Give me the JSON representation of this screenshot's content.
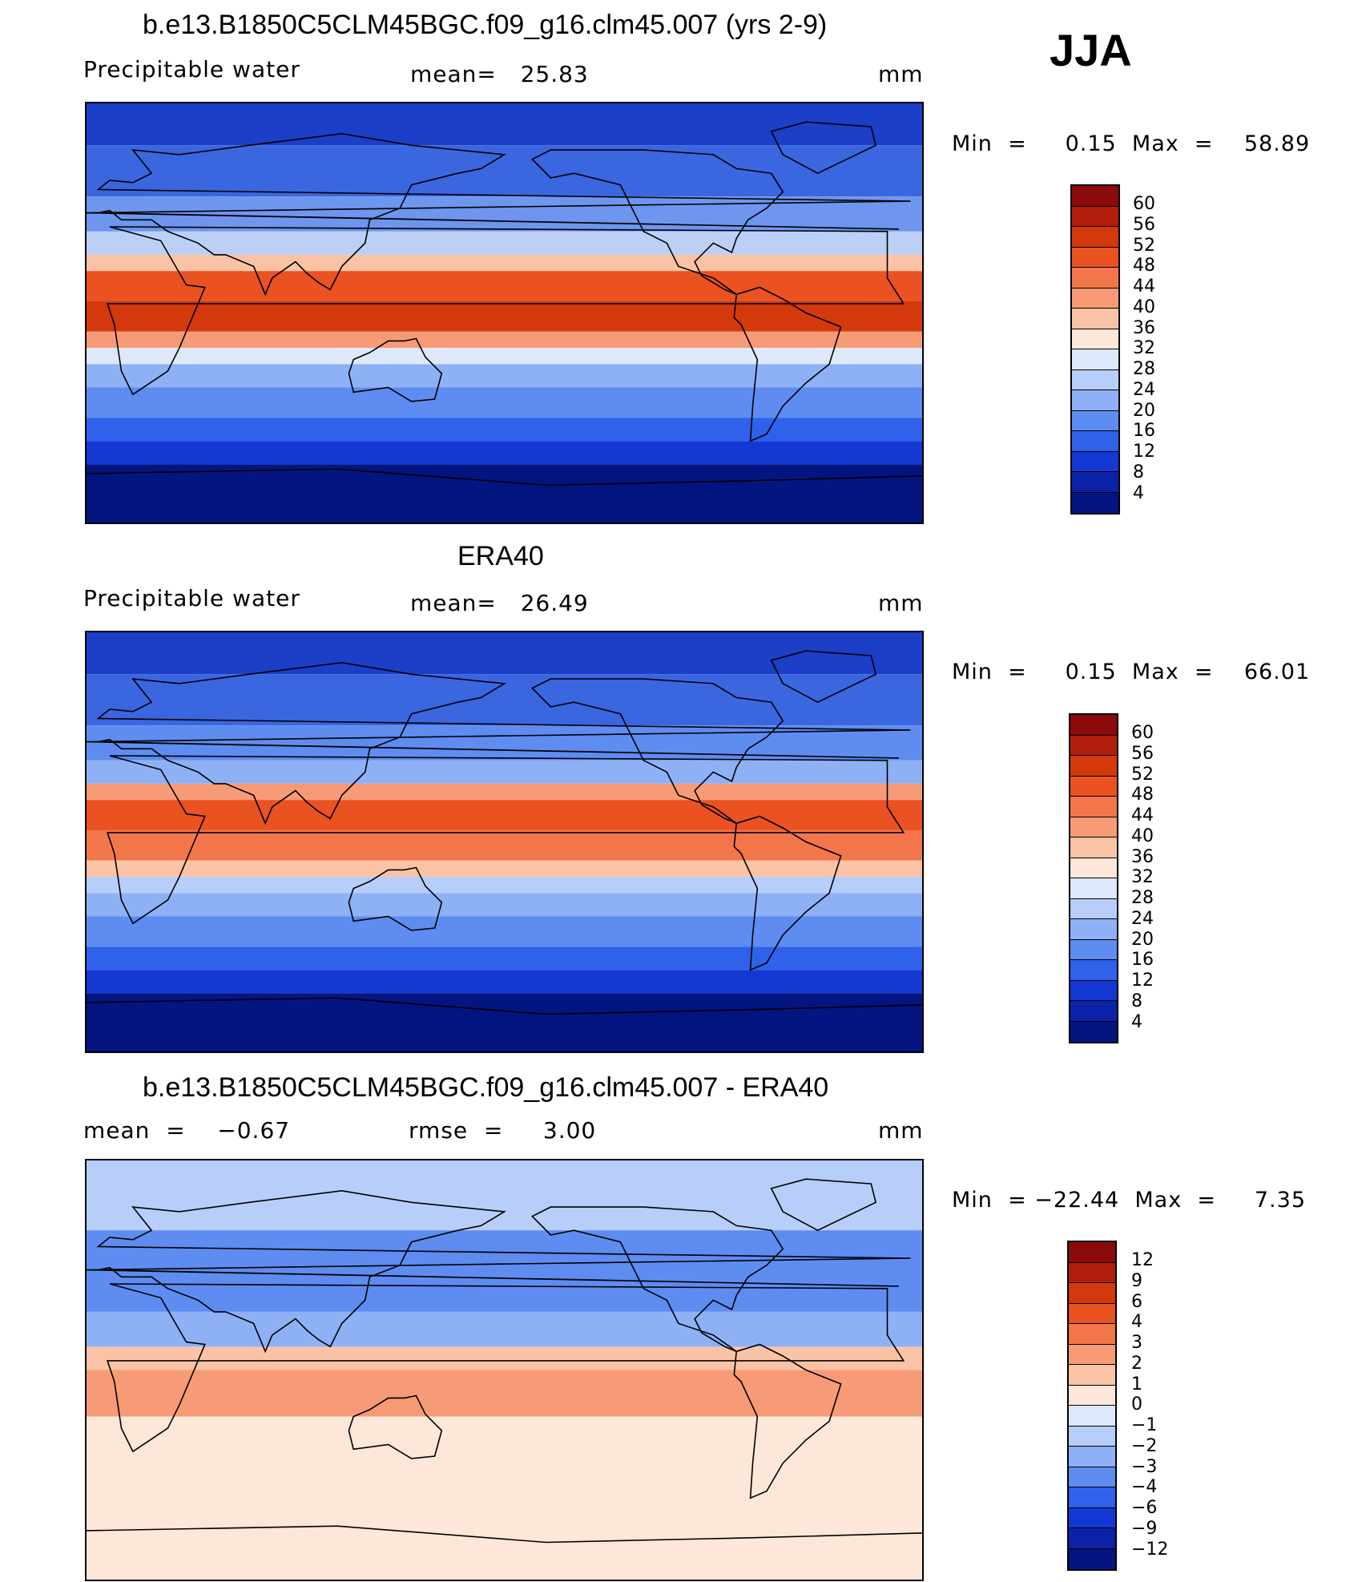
{
  "season": "JJA",
  "panels": [
    {
      "title": "b.e13.B1850C5CLM45BGC.f09_g16.clm45.007 (yrs 2-9)",
      "left_label": "Precipitable water",
      "center_label": "mean=   25.83",
      "right_label": "mm",
      "minmax": "Min  =     0.15  Max  =    58.89",
      "legend_labels": [
        "60",
        "56",
        "52",
        "48",
        "44",
        "40",
        "36",
        "32",
        "28",
        "24",
        "20",
        "16",
        "12",
        "8",
        "4"
      ],
      "legend_colors": [
        "#8b0a0a",
        "#b01e0b",
        "#d4380d",
        "#ea5221",
        "#f2764a",
        "#f79b77",
        "#fbc3a6",
        "#fde7d9",
        "#dde8fb",
        "#b7cefa",
        "#8eb1f6",
        "#5e8cf1",
        "#2f61ea",
        "#1438d4",
        "#0b22a8",
        "#041480"
      ],
      "bands": [
        {
          "lat": [
            90,
            72
          ],
          "color": "#1c3fc8"
        },
        {
          "lat": [
            72,
            50
          ],
          "color": "#3a66e0"
        },
        {
          "lat": [
            50,
            35
          ],
          "color": "#6e96ee"
        },
        {
          "lat": [
            35,
            25
          ],
          "color": "#bcd0f7"
        },
        {
          "lat": [
            25,
            18
          ],
          "color": "#fbc3a6"
        },
        {
          "lat": [
            18,
            5
          ],
          "color": "#ea5221"
        },
        {
          "lat": [
            5,
            -8
          ],
          "color": "#d4380d"
        },
        {
          "lat": [
            -8,
            -15
          ],
          "color": "#f79b77"
        },
        {
          "lat": [
            -15,
            -22
          ],
          "color": "#dde8fb"
        },
        {
          "lat": [
            -22,
            -32
          ],
          "color": "#8eb1f6"
        },
        {
          "lat": [
            -32,
            -45
          ],
          "color": "#5e8cf1"
        },
        {
          "lat": [
            -45,
            -55
          ],
          "color": "#2f61ea"
        },
        {
          "lat": [
            -55,
            -65
          ],
          "color": "#1438d4"
        },
        {
          "lat": [
            -65,
            -90
          ],
          "color": "#041480"
        }
      ]
    },
    {
      "title": "ERA40",
      "left_label": "Precipitable water",
      "center_label": "mean=   26.49",
      "right_label": "mm",
      "minmax": "Min  =     0.15  Max  =    66.01",
      "legend_labels": [
        "60",
        "56",
        "52",
        "48",
        "44",
        "40",
        "36",
        "32",
        "28",
        "24",
        "20",
        "16",
        "12",
        "8",
        "4"
      ],
      "legend_colors": [
        "#8b0a0a",
        "#b01e0b",
        "#d4380d",
        "#ea5221",
        "#f2764a",
        "#f79b77",
        "#fbc3a6",
        "#fde7d9",
        "#dde8fb",
        "#b7cefa",
        "#8eb1f6",
        "#5e8cf1",
        "#2f61ea",
        "#1438d4",
        "#0b22a8",
        "#041480"
      ],
      "bands": [
        {
          "lat": [
            90,
            72
          ],
          "color": "#1c3fc8"
        },
        {
          "lat": [
            72,
            50
          ],
          "color": "#3a66e0"
        },
        {
          "lat": [
            50,
            35
          ],
          "color": "#5e8cf1"
        },
        {
          "lat": [
            35,
            25
          ],
          "color": "#8eb1f6"
        },
        {
          "lat": [
            25,
            18
          ],
          "color": "#f79b77"
        },
        {
          "lat": [
            18,
            5
          ],
          "color": "#ea5221"
        },
        {
          "lat": [
            5,
            -8
          ],
          "color": "#f2764a"
        },
        {
          "lat": [
            -8,
            -15
          ],
          "color": "#fbc3a6"
        },
        {
          "lat": [
            -15,
            -22
          ],
          "color": "#b7cefa"
        },
        {
          "lat": [
            -22,
            -32
          ],
          "color": "#8eb1f6"
        },
        {
          "lat": [
            -32,
            -45
          ],
          "color": "#5e8cf1"
        },
        {
          "lat": [
            -45,
            -55
          ],
          "color": "#2f61ea"
        },
        {
          "lat": [
            -55,
            -65
          ],
          "color": "#1438d4"
        },
        {
          "lat": [
            -65,
            -90
          ],
          "color": "#041480"
        }
      ]
    },
    {
      "title": "b.e13.B1850C5CLM45BGC.f09_g16.clm45.007 - ERA40",
      "left_label": "mean  =    −0.67",
      "center_label": "rmse  =     3.00",
      "right_label": "mm",
      "minmax": "Min  = −22.44  Max  =     7.35",
      "legend_labels": [
        "12",
        "9",
        "6",
        "4",
        "3",
        "2",
        "1",
        "0",
        "−1",
        "−2",
        "−3",
        "−4",
        "−6",
        "−9",
        "−12"
      ],
      "legend_colors": [
        "#8b0a0a",
        "#b01e0b",
        "#d4380d",
        "#ea5221",
        "#f2764a",
        "#f79b77",
        "#fbc3a6",
        "#fde7d9",
        "#dde8fb",
        "#b7cefa",
        "#8eb1f6",
        "#5e8cf1",
        "#2f61ea",
        "#1438d4",
        "#0b22a8",
        "#041480"
      ],
      "bands": [
        {
          "lat": [
            90,
            60
          ],
          "color": "#b7cefa"
        },
        {
          "lat": [
            60,
            25
          ],
          "color": "#5e8cf1"
        },
        {
          "lat": [
            25,
            10
          ],
          "color": "#8eb1f6"
        },
        {
          "lat": [
            10,
            0
          ],
          "color": "#fbc3a6"
        },
        {
          "lat": [
            0,
            -20
          ],
          "color": "#f79b77"
        },
        {
          "lat": [
            -20,
            -60
          ],
          "color": "#fde7d9"
        },
        {
          "lat": [
            -60,
            -90
          ],
          "color": "#fde7d9"
        }
      ]
    }
  ],
  "map_lon_range": [
    0,
    360
  ],
  "map_lat_range": [
    -90,
    90
  ]
}
